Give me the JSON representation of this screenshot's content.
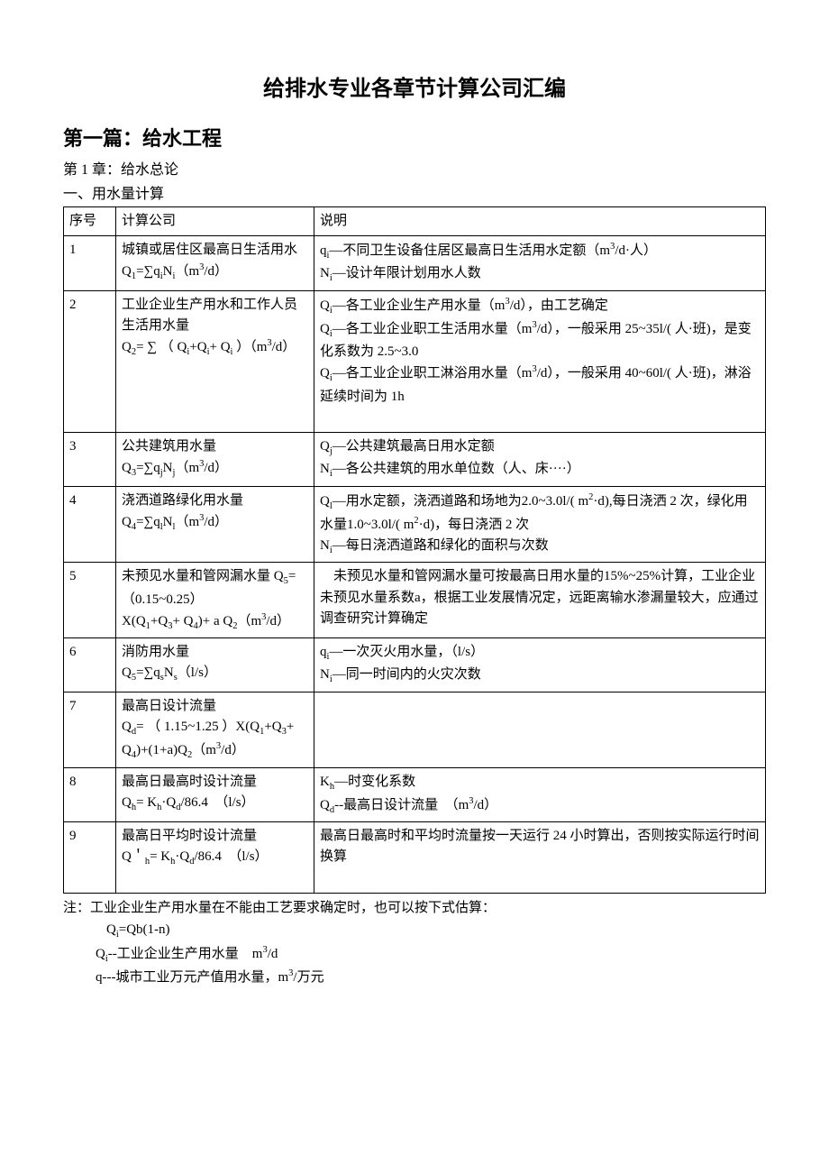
{
  "title": "给排水专业各章节计算公司汇编",
  "section": "第一篇：给水工程",
  "chapter": "第 1 章：给水总论",
  "subhead": "一、用水量计算",
  "table": {
    "headers": [
      "序号",
      "计算公司",
      "说明"
    ],
    "rows": [
      {
        "num": "1",
        "formula": "城镇或居住区最高日生活用水<br>Q<sub>1</sub>=∑q<sub>i</sub>N<sub>i</sub>（m<sup>3</sup>/d）",
        "desc": "q<sub>i</sub>—不同卫生设备住居区最高日生活用水定额（m<sup>3</sup>/d·人）<br>N<sub>i</sub>—设计年限计划用水人数"
      },
      {
        "num": "2",
        "formula": "工业企业生产用水和工作人员生活用水量<br>Q<sub>2</sub>=&nbsp;∑&nbsp;（&nbsp;Q<sub>i</sub>+Q<sub>i</sub>+&nbsp;Q<sub>i</sub>&nbsp;）（m<sup>3</sup>/d）",
        "desc": "Q<sub>i</sub>—各工业企业生产用水量（m<sup>3</sup>/d），由工艺确定<br>Q<sub>i</sub>—各工业企业职工生活用水量（m<sup>3</sup>/d），一般采用 25~35l/(&nbsp;人·班)，是变化系数为 2.5~3.0<br>Q<sub>i</sub>—各工业企业职工淋浴用水量（m<sup>3</sup>/d），一般采用 40~60l/(&nbsp;人·班)，淋浴延续时间为 1h<br>&nbsp;"
      },
      {
        "num": "3",
        "formula": "公共建筑用水量<br>Q<sub>3</sub>=∑q<sub>j</sub>N<sub>j</sub>（m<sup>3</sup>/d）",
        "desc": "Q<sub>j</sub>—公共建筑最高日用水定额<br>N<sub>i</sub>—各公共建筑的用水单位数（人、床····）"
      },
      {
        "num": "4",
        "formula": "浇洒道路绿化用水量<br>Q<sub>4</sub>=∑q<sub>l</sub>N<sub>l</sub>（m<sup>3</sup>/d）",
        "desc": "Q<sub>l</sub>—用水定额，浇洒道路和场地为2.0~3.0l/( m<sup>2</sup>·d),每日浇洒 2 次，绿化用水量1.0~3.0l/( m<sup>2</sup>·d)，每日浇洒 2 次<br>N<sub>i</sub>—每日浇洒道路和绿化的面积与次数"
      },
      {
        "num": "5",
        "formula": "未预见水量和管网漏水量&nbsp;Q<sub>5</sub>=（0.15~0.25）X(Q<sub>1</sub>+Q<sub>3</sub>+&nbsp;Q<sub>4</sub>)+&nbsp;а&nbsp;Q<sub>2</sub>（m<sup>3</sup>/d）",
        "desc": "　未预见水量和管网漏水量可按最高日用水量的15%~25%计算，工业企业未预见水量系数а，根据工业发展情况定，远距离输水渗漏量较大，应通过调查研究计算确定"
      },
      {
        "num": "6",
        "formula": "消防用水量<br>Q<sub>5</sub>=∑q<sub>s</sub>N<sub>s</sub>（l/s）",
        "desc": "q<sub>i</sub>—一次灭火用水量，（l/s）<br>N<sub>i</sub>—同一时间内的火灾次数"
      },
      {
        "num": "7",
        "formula": "最高日设计流量<br>Q<sub>d</sub>=&nbsp;（&nbsp;1.15~1.25&nbsp;）X(Q<sub>1</sub>+Q<sub>3</sub>+ Q<sub>4</sub>)+(1+а)Q<sub>2</sub>（m<sup>3</sup>/d）",
        "desc": ""
      },
      {
        "num": "8",
        "formula": "最高日最高时设计流量<br>Q<sub>h</sub>= K<sub>h</sub>·Q<sub>d</sub>/86.4　（l/s）",
        "desc": "K<sub>h</sub>—时变化系数<br>Q<sub>d</sub>--最高日设计流量　（m<sup>3</sup>/d）"
      },
      {
        "num": "9",
        "formula": "最高日平均时设计流量<br>Q＇<sub>h</sub>= K<sub>h</sub>·Q<sub>d</sub>/86.4　（l/s）",
        "desc": "最高日最高时和平均时流量按一天运行 24 小时算出，否则按实际运行时间换算<br>&nbsp;"
      }
    ]
  },
  "notes": {
    "line1": "注：工业企业生产用水量在不能由工艺要求确定时，也可以按下式估算：",
    "line2": "Q<sub>i</sub>=Qb(1-n)",
    "line3": "Q<sub>i</sub>--工业企业生产用水量　m<sup>3</sup>/d",
    "line4": "q---城市工业万元产值用水量，m<sup>3</sup>/万元"
  }
}
